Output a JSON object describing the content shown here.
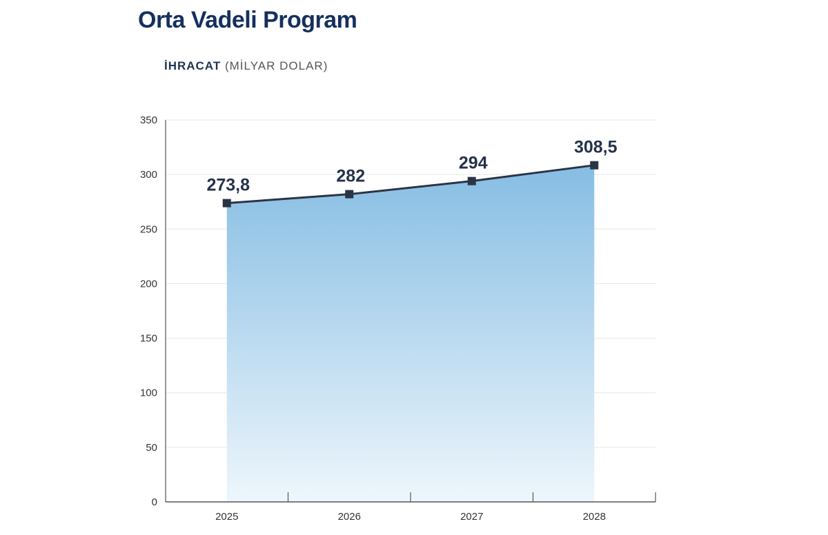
{
  "title": "Orta Vadeli Program",
  "subtitle_bold": "İHRACAT",
  "subtitle_rest": "(MİLYAR DOLAR)",
  "chart_data": {
    "type": "area",
    "categories": [
      "2025",
      "2026",
      "2027",
      "2028"
    ],
    "values": [
      273.8,
      282,
      294,
      308.5
    ],
    "data_labels": [
      "273,8",
      "282",
      "294",
      "308,5"
    ],
    "ylim": [
      0,
      350
    ],
    "yticks": [
      0,
      50,
      100,
      150,
      200,
      250,
      300,
      350
    ],
    "grid": true,
    "colors": {
      "line": "#2b3445",
      "fill_top": "#86bde3",
      "fill_bottom": "#eef6fc",
      "marker": "#2b3445"
    }
  }
}
